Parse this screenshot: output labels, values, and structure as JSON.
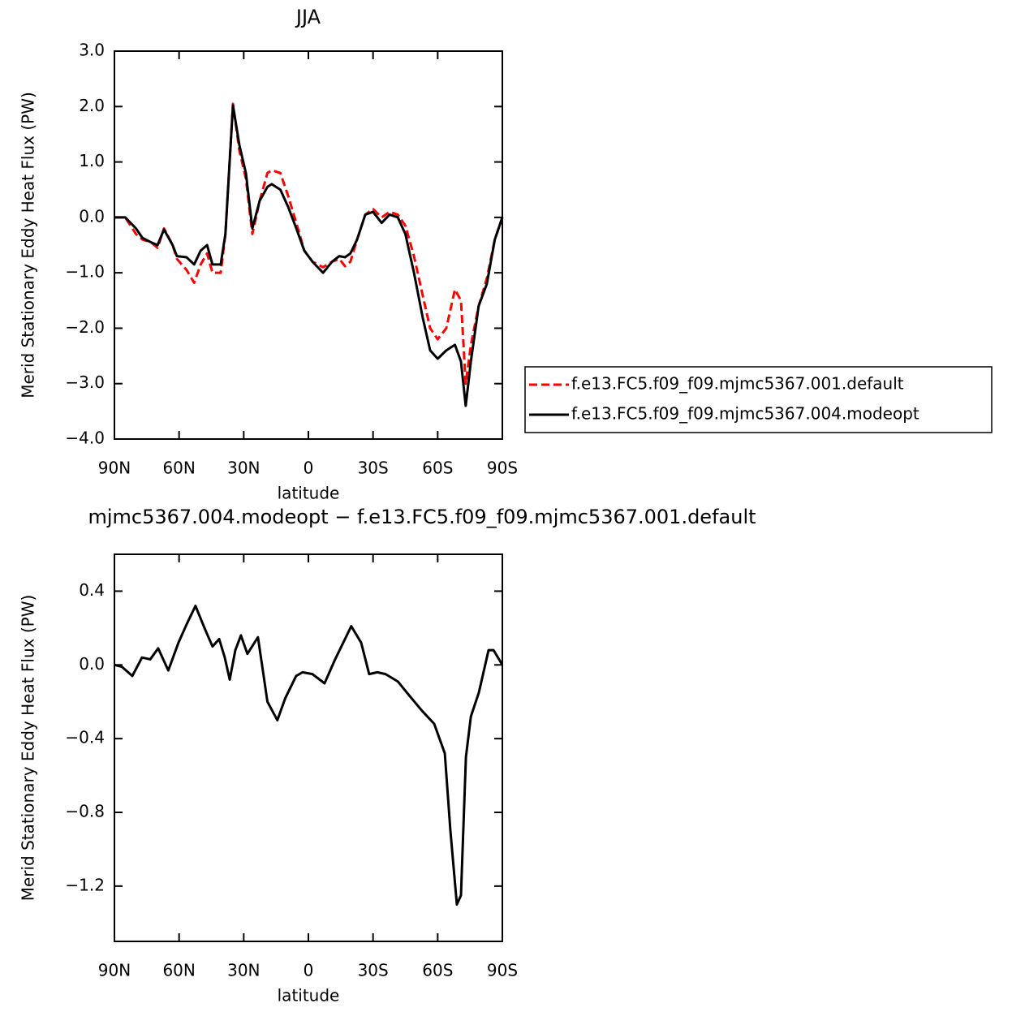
{
  "chart_data": [
    {
      "type": "line",
      "title": "JJA",
      "xlabel": "latitude",
      "ylabel": "Merid Stationary Eddy Heat Flux (PW)",
      "x": [
        90,
        85,
        80,
        77,
        73,
        70,
        67,
        63,
        61,
        56.5,
        53,
        50,
        47,
        44.5,
        40.7,
        38.5,
        35,
        32,
        29,
        26,
        22.6,
        19,
        17,
        13,
        9.5,
        5.6,
        1.9,
        -1.9,
        -6.8,
        -11,
        -14.3,
        -17,
        -19.5,
        -22.6,
        -26.4,
        -30,
        -34,
        -37.7,
        -41.5,
        -45,
        -49,
        -53,
        -56.5,
        -60,
        -64,
        -68,
        -70.8,
        -73,
        -75.4,
        -79,
        -82.8,
        -86.5,
        -90
      ],
      "series": [
        {
          "name": "f.e13.FC5.f09_f09.mjmc5367.001.default",
          "color": "#ff0000",
          "line_style": "dashed",
          "values": [
            0,
            0,
            -0.3,
            -0.4,
            -0.45,
            -0.55,
            -0.2,
            -0.5,
            -0.75,
            -0.95,
            -1.18,
            -0.85,
            -0.65,
            -1.0,
            -1.0,
            -0.3,
            2.05,
            1.2,
            0.7,
            -0.3,
            0.3,
            0.8,
            0.85,
            0.8,
            0.4,
            -0.1,
            -0.6,
            -0.8,
            -0.9,
            -0.8,
            -0.75,
            -0.88,
            -0.8,
            -0.4,
            0.05,
            0.15,
            0.0,
            0.1,
            0.05,
            -0.15,
            -0.7,
            -1.4,
            -2.0,
            -2.2,
            -2.0,
            -1.3,
            -1.5,
            -3.0,
            -2.3,
            -1.6,
            -1.1,
            -0.4,
            0
          ]
        },
        {
          "name": "f.e13.FC5.f09_f09.mjmc5367.004.modeopt",
          "color": "#000000",
          "line_style": "solid",
          "values": [
            0,
            0,
            -0.2,
            -0.37,
            -0.45,
            -0.5,
            -0.22,
            -0.5,
            -0.7,
            -0.72,
            -0.85,
            -0.6,
            -0.5,
            -0.85,
            -0.85,
            -0.3,
            2.02,
            1.3,
            0.8,
            -0.2,
            0.3,
            0.55,
            0.6,
            0.5,
            0.2,
            -0.2,
            -0.6,
            -0.8,
            -1.0,
            -0.8,
            -0.7,
            -0.72,
            -0.65,
            -0.4,
            0.05,
            0.1,
            -0.1,
            0.05,
            0.0,
            -0.3,
            -1.0,
            -1.8,
            -2.4,
            -2.55,
            -2.4,
            -2.3,
            -2.6,
            -3.4,
            -2.6,
            -1.6,
            -1.2,
            -0.4,
            0
          ]
        }
      ],
      "xlim": [
        90,
        -90
      ],
      "xticks": [
        {
          "value": 90,
          "label": "90N"
        },
        {
          "value": 60,
          "label": "60N"
        },
        {
          "value": 30,
          "label": "30N"
        },
        {
          "value": 0,
          "label": "0"
        },
        {
          "value": -30,
          "label": "30S"
        },
        {
          "value": -60,
          "label": "60S"
        },
        {
          "value": -90,
          "label": "90S"
        }
      ],
      "ylim": [
        -4,
        3
      ],
      "yticks": [
        {
          "value": 3,
          "label": "3.0"
        },
        {
          "value": 2,
          "label": "2.0"
        },
        {
          "value": 1,
          "label": "1.0"
        },
        {
          "value": 0,
          "label": "0.0"
        },
        {
          "value": -1,
          "label": "−1.0"
        },
        {
          "value": -2,
          "label": "−2.0"
        },
        {
          "value": -3,
          "label": "−3.0"
        },
        {
          "value": -4,
          "label": "−4.0"
        }
      ],
      "legend": "right"
    },
    {
      "type": "line",
      "title": "mjmc5367.004.modeopt − f.e13.FC5.f09_f09.mjmc5367.001.default",
      "xlabel": "latitude",
      "ylabel": "Merid Stationary Eddy Heat Flux (PW)",
      "x": [
        90,
        86.6,
        81.7,
        77.2,
        73.4,
        69.7,
        65,
        60.3,
        56.5,
        52.4,
        48.2,
        44.5,
        41.4,
        38.8,
        36.5,
        33.9,
        31.3,
        28.3,
        23.4,
        19,
        14.4,
        10.7,
        5.7,
        2.7,
        -1.9,
        -7.5,
        -12.4,
        -19.9,
        -24.5,
        -28.2,
        -32,
        -35.8,
        -41.5,
        -47.1,
        -52.8,
        -58.4,
        -63.3,
        -65.9,
        -68.9,
        -70.8,
        -73.1,
        -75.4,
        -79.1,
        -83.6,
        -85.9,
        -90
      ],
      "series": [
        {
          "color": "#000000",
          "line_style": "solid",
          "values": [
            0,
            -0.01,
            -0.06,
            0.04,
            0.03,
            0.09,
            -0.03,
            0.12,
            0.22,
            0.32,
            0.2,
            0.1,
            0.14,
            0.04,
            -0.08,
            0.08,
            0.16,
            0.06,
            0.15,
            -0.2,
            -0.3,
            -0.18,
            -0.06,
            -0.04,
            -0.05,
            -0.1,
            0.03,
            0.21,
            0.12,
            -0.05,
            -0.04,
            -0.05,
            -0.09,
            -0.17,
            -0.25,
            -0.32,
            -0.48,
            -0.9,
            -1.3,
            -1.25,
            -0.5,
            -0.28,
            -0.15,
            0.08,
            0.08,
            0
          ]
        }
      ],
      "xlim": [
        90,
        -90
      ],
      "xticks": [
        {
          "value": 90,
          "label": "90N"
        },
        {
          "value": 60,
          "label": "60N"
        },
        {
          "value": 30,
          "label": "30N"
        },
        {
          "value": 0,
          "label": "0"
        },
        {
          "value": -30,
          "label": "30S"
        },
        {
          "value": -60,
          "label": "60S"
        },
        {
          "value": -90,
          "label": "90S"
        }
      ],
      "ylim": [
        -1.5,
        0.6
      ],
      "yticks": [
        {
          "value": 0.4,
          "label": "0.4"
        },
        {
          "value": 0,
          "label": "0.0"
        },
        {
          "value": -0.4,
          "label": "−0.4"
        },
        {
          "value": -0.8,
          "label": "−0.8"
        },
        {
          "value": -1.2,
          "label": "−1.2"
        }
      ]
    }
  ]
}
